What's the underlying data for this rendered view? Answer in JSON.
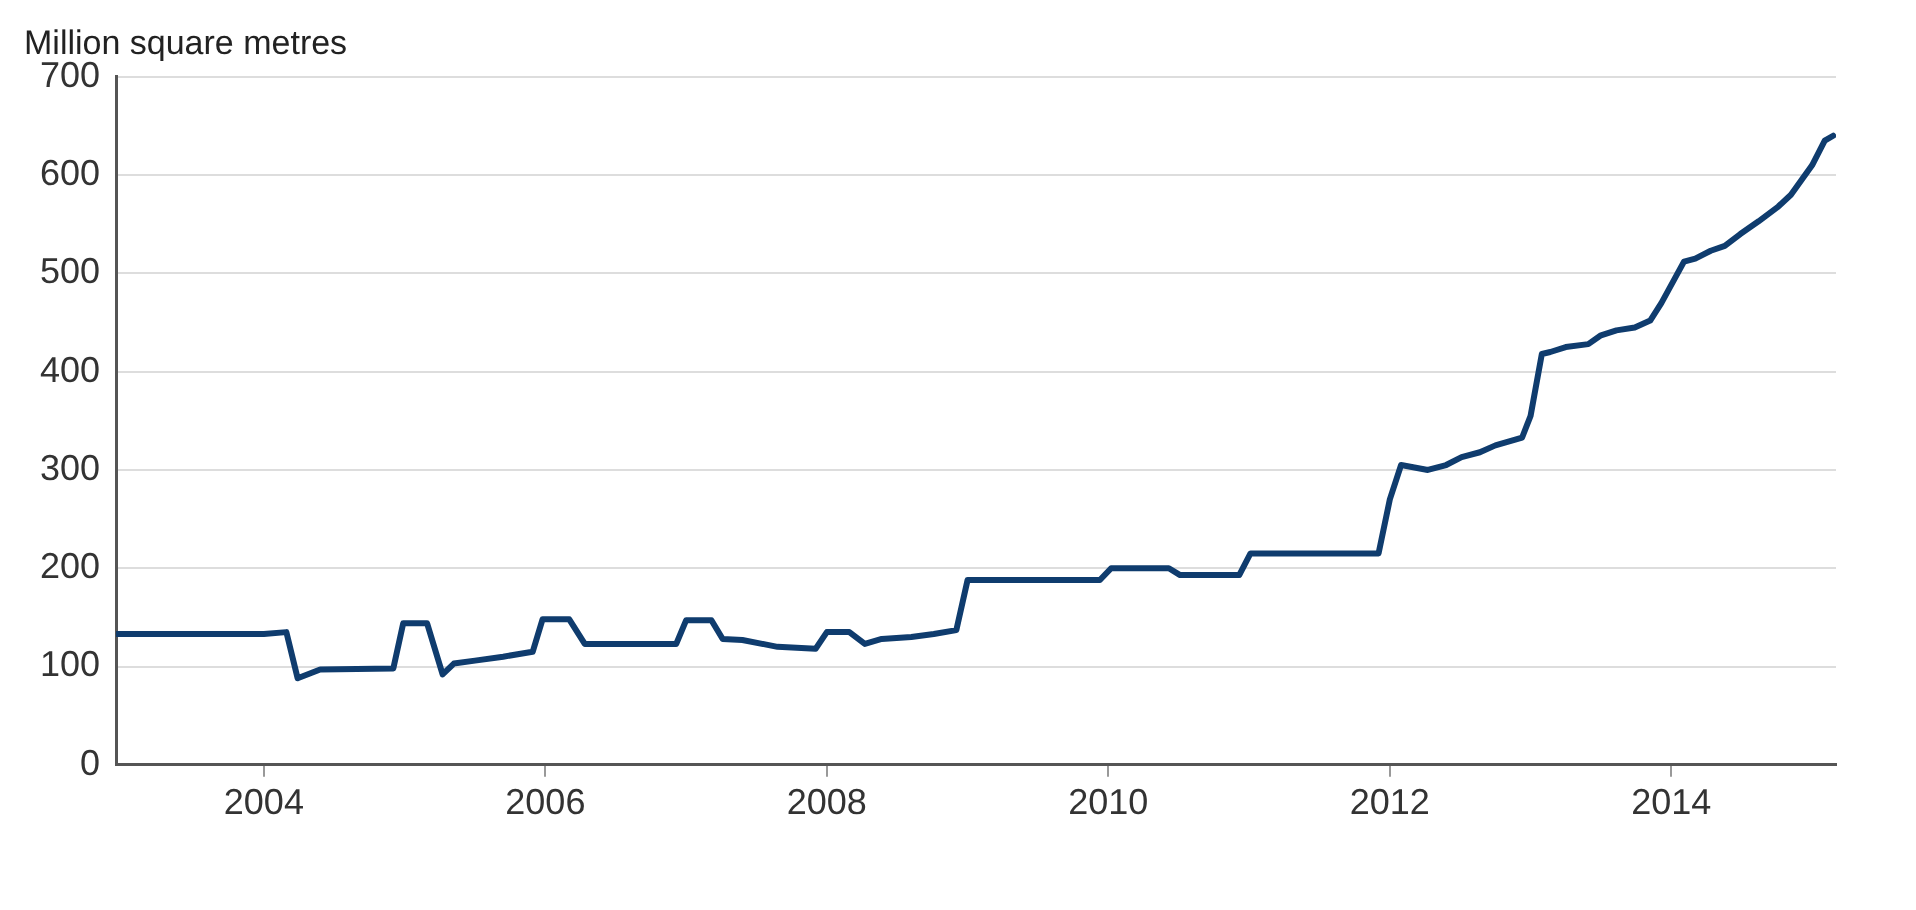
{
  "chart_data": {
    "type": "line",
    "ylabel": "Million square metres",
    "x": [
      2002.95,
      2004.0,
      2004.16,
      2004.24,
      2004.4,
      2004.92,
      2004.99,
      2005.16,
      2005.27,
      2005.35,
      2005.5,
      2005.7,
      2005.91,
      2005.98,
      2006.17,
      2006.28,
      2006.93,
      2007.0,
      2007.18,
      2007.26,
      2007.4,
      2007.65,
      2007.92,
      2008.0,
      2008.16,
      2008.27,
      2008.39,
      2008.6,
      2008.76,
      2008.92,
      2009.0,
      2009.94,
      2010.02,
      2010.43,
      2010.51,
      2010.93,
      2011.01,
      2011.92,
      2012.0,
      2012.08,
      2012.27,
      2012.4,
      2012.51,
      2012.64,
      2012.75,
      2012.94,
      2013.0,
      2013.08,
      2013.14,
      2013.25,
      2013.41,
      2013.5,
      2013.61,
      2013.74,
      2013.85,
      2013.93,
      2014.09,
      2014.17,
      2014.28,
      2014.38,
      2014.49,
      2014.62,
      2014.76,
      2014.85,
      2015.0,
      2015.09,
      2015.15
    ],
    "series": [
      {
        "color": "#0f3c6e",
        "values": [
          133,
          133,
          135,
          88,
          97,
          98,
          144,
          144,
          92,
          103,
          106,
          110,
          115,
          148,
          148,
          123,
          123,
          147,
          147,
          128,
          127,
          120,
          118,
          135,
          135,
          123,
          128,
          130,
          133,
          137,
          188,
          188,
          200,
          200,
          193,
          193,
          215,
          215,
          270,
          305,
          300,
          305,
          313,
          318,
          325,
          333,
          355,
          418,
          420,
          425,
          428,
          437,
          442,
          445,
          452,
          470,
          512,
          515,
          523,
          528,
          540,
          553,
          568,
          580,
          610,
          635,
          640
        ]
      }
    ],
    "xlim": [
      2002.95,
      2015.17
    ],
    "xticks": [
      2004,
      2006,
      2008,
      2010,
      2012,
      2014
    ],
    "ylim": [
      0,
      700
    ],
    "yticks": [
      0,
      100,
      200,
      300,
      400,
      500,
      600,
      700
    ],
    "grid": "y",
    "legend": false,
    "marker": "none",
    "line_style": "solid"
  }
}
